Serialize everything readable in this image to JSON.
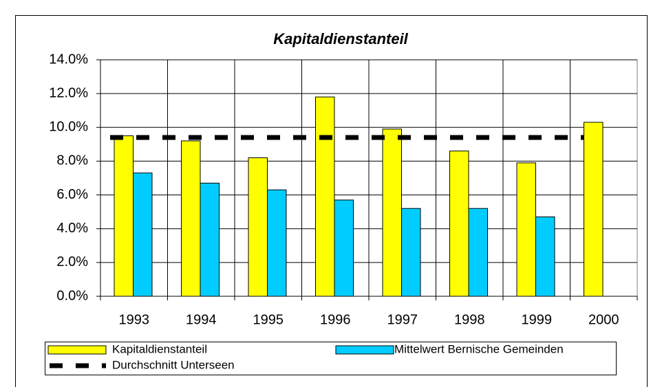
{
  "chart_data": {
    "type": "bar",
    "title": "Kapitaldienstanteil",
    "categories": [
      "1993",
      "1994",
      "1995",
      "1996",
      "1997",
      "1998",
      "1999",
      "2000"
    ],
    "series": [
      {
        "name": "Kapitaldienstanteil",
        "color": "#ffff00",
        "type": "bar",
        "values": [
          9.5,
          9.2,
          8.2,
          11.8,
          9.9,
          8.6,
          7.9,
          10.3
        ]
      },
      {
        "name": "Mittelwert Bernische Gemeinden",
        "color": "#00ccff",
        "type": "bar",
        "values": [
          7.3,
          6.7,
          6.3,
          5.7,
          5.2,
          5.2,
          4.7,
          null
        ]
      },
      {
        "name": "Durchschnitt Unterseen",
        "color": "#000000",
        "type": "line",
        "dashed": true,
        "values": [
          9.4,
          9.4,
          9.4,
          9.4,
          9.4,
          9.4,
          9.4,
          9.4
        ]
      }
    ],
    "ylim": [
      0,
      14
    ],
    "yticks": [
      {
        "value": 0,
        "label": "0.0%"
      },
      {
        "value": 2,
        "label": "2.0%"
      },
      {
        "value": 4,
        "label": "4.0%"
      },
      {
        "value": 6,
        "label": "6.0%"
      },
      {
        "value": 8,
        "label": "8.0%"
      },
      {
        "value": 10,
        "label": "10.0%"
      },
      {
        "value": 12,
        "label": "12.0%"
      },
      {
        "value": 14,
        "label": "14.0%"
      }
    ],
    "grid": true,
    "legend": "bottom"
  }
}
